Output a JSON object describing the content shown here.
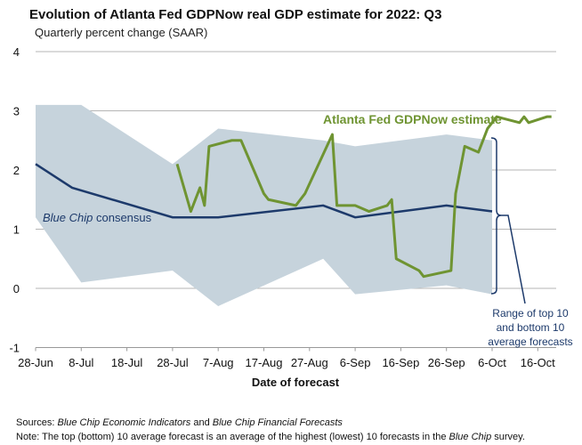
{
  "chart_data": {
    "type": "line",
    "title": "Evolution of Atlanta Fed GDPNow real GDP estimate for 2022: Q3",
    "subtitle": "Quarterly percent change (SAAR)",
    "xlabel": "Date of forecast",
    "ylabel": "",
    "ylim": [
      -1,
      4
    ],
    "yticks": [
      "4",
      "3",
      "2",
      "1",
      "0",
      "-1"
    ],
    "xlim": [
      "28-Jun",
      "21-Oct"
    ],
    "xticks": [
      "28-Jun",
      "8-Jul",
      "18-Jul",
      "28-Jul",
      "7-Aug",
      "17-Aug",
      "27-Aug",
      "6-Sep",
      "16-Sep",
      "26-Sep",
      "6-Oct",
      "16-Oct"
    ],
    "grid": true,
    "series": [
      {
        "name": "Atlanta Fed GDPNow estimate",
        "color": "#6f9432",
        "x": [
          "29-Jul",
          "1-Aug",
          "3-Aug",
          "4-Aug",
          "5-Aug",
          "10-Aug",
          "12-Aug",
          "17-Aug",
          "18-Aug",
          "24-Aug",
          "26-Aug",
          "1-Sep",
          "2-Sep",
          "6-Sep",
          "9-Sep",
          "13-Sep",
          "14-Sep",
          "15-Sep",
          "20-Sep",
          "21-Sep",
          "27-Sep",
          "28-Sep",
          "30-Sep",
          "3-Oct",
          "5-Oct",
          "7-Oct",
          "12-Oct",
          "13-Oct",
          "14-Oct",
          "18-Oct",
          "19-Oct"
        ],
        "values": [
          2.1,
          1.3,
          1.7,
          1.4,
          2.4,
          2.5,
          2.5,
          1.6,
          1.5,
          1.4,
          1.6,
          2.6,
          1.4,
          1.4,
          1.3,
          1.4,
          1.5,
          0.5,
          0.3,
          0.2,
          0.3,
          1.6,
          2.4,
          2.3,
          2.7,
          2.9,
          2.8,
          2.9,
          2.8,
          2.9,
          2.9
        ]
      },
      {
        "name": "Blue Chip consensus",
        "name_italic_part": "Blue Chip",
        "name_plain_part": " consensus",
        "color": "#1d3a6b",
        "x": [
          "28-Jun",
          "6-Jul",
          "28-Jul",
          "7-Aug",
          "30-Aug",
          "6-Sep",
          "26-Sep",
          "6-Oct"
        ],
        "values": [
          2.1,
          1.7,
          1.2,
          1.2,
          1.4,
          1.2,
          1.4,
          1.3
        ]
      }
    ],
    "band": {
      "color": "#c6d3dc",
      "x": [
        "28-Jun",
        "8-Jul",
        "28-Jul",
        "7-Aug",
        "30-Aug",
        "6-Sep",
        "26-Sep",
        "6-Oct"
      ],
      "upper": [
        3.1,
        3.1,
        2.1,
        2.7,
        2.5,
        2.4,
        2.6,
        2.5
      ],
      "lower": [
        1.2,
        0.1,
        0.3,
        -0.3,
        0.5,
        -0.1,
        0.05,
        -0.1
      ]
    },
    "annotation": {
      "lines": [
        "Range of top 10",
        "and bottom 10",
        "average forecasts"
      ]
    }
  },
  "footnotes": {
    "sources_label": "Sources:",
    "sources_it1": " Blue Chip Economic Indicators",
    "sources_mid": " and ",
    "sources_it2": "Blue Chip Financial Forecasts",
    "note_label": "Note:",
    "note_text": " The top (bottom) 10 average forecast is an average of the highest (lowest) 10 forecasts in the ",
    "note_it": "Blue Chip",
    "note_end": " survey."
  }
}
